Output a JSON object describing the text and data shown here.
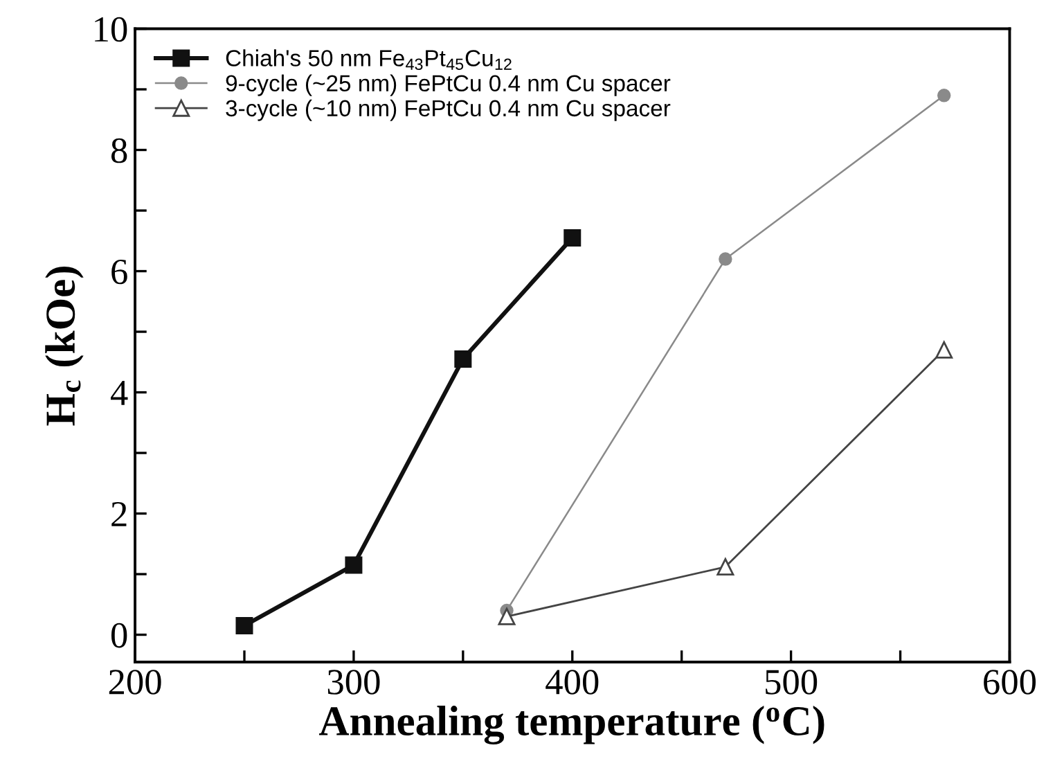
{
  "chart_data": {
    "type": "line",
    "xlabel": "Annealing temperature ($^{o}$C)",
    "ylabel": "H$_{c}$ (kOe)",
    "xlim": [
      200,
      600
    ],
    "ylim": [
      -0.45,
      10
    ],
    "xticks": [
      200,
      {
        "value": 250,
        "label": null
      },
      300,
      {
        "value": 350,
        "label": null
      },
      400,
      {
        "value": 450,
        "label": null
      },
      500,
      {
        "value": 550,
        "label": null
      },
      600
    ],
    "yticks": [
      0,
      {
        "value": 1,
        "label": null
      },
      2,
      {
        "value": 3,
        "label": null
      },
      4,
      {
        "value": 5,
        "label": null
      },
      6,
      {
        "value": 7,
        "label": null
      },
      8,
      {
        "value": 9,
        "label": null
      },
      10
    ],
    "grid": false,
    "legend": "top left",
    "series": [
      {
        "name": "Chiah's 50 nm Fe$_{43}$Pt$_{45}$Cu$_{12}$",
        "color": "#111111",
        "marker": "square",
        "x": [
          250,
          300,
          350,
          400
        ],
        "values": [
          0.15,
          1.15,
          4.55,
          6.55
        ]
      },
      {
        "name": "9-cycle (~25 nm) FePtCu 0.4 nm Cu spacer",
        "color": "#8a8a8a",
        "marker": "circle",
        "x": [
          370,
          470,
          570
        ],
        "values": [
          0.4,
          6.2,
          8.9
        ]
      },
      {
        "name": "3-cycle (~10 nm) FePtCu 0.4 nm Cu spacer",
        "color": "#444444",
        "marker": "triangle",
        "x": [
          370,
          470,
          570
        ],
        "values": [
          0.3,
          1.12,
          4.7
        ]
      }
    ]
  }
}
